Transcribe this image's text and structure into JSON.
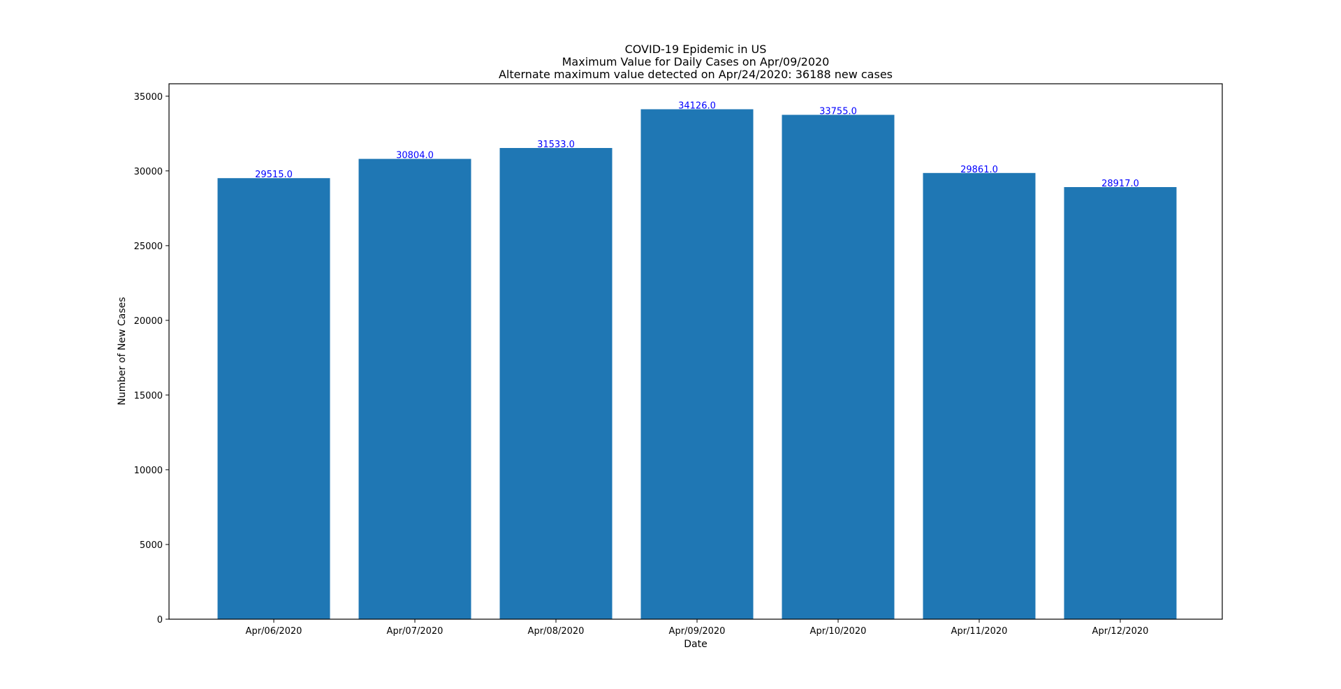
{
  "chart_data": {
    "type": "bar",
    "title_lines": [
      "COVID-19 Epidemic in US",
      "Maximum Value for Daily Cases on Apr/09/2020",
      "Alternate maximum value detected on Apr/24/2020: 36188 new cases"
    ],
    "xlabel": "Date",
    "ylabel": "Number of New Cases",
    "categories": [
      "Apr/06/2020",
      "Apr/07/2020",
      "Apr/08/2020",
      "Apr/09/2020",
      "Apr/10/2020",
      "Apr/11/2020",
      "Apr/12/2020"
    ],
    "values": [
      29515,
      30804,
      31533,
      34126,
      33755,
      29861,
      28917
    ],
    "data_labels": [
      "29515.0",
      "30804.0",
      "31533.0",
      "34126.0",
      "33755.0",
      "29861.0",
      "28917.0"
    ],
    "yticks": [
      0,
      5000,
      10000,
      15000,
      20000,
      25000,
      30000,
      35000
    ],
    "ylim": [
      0,
      35832
    ],
    "grid": false,
    "colors": {
      "bar": "#1f77b4",
      "data_label": "#0000ff",
      "axis": "#000000",
      "text": "#000000"
    }
  }
}
